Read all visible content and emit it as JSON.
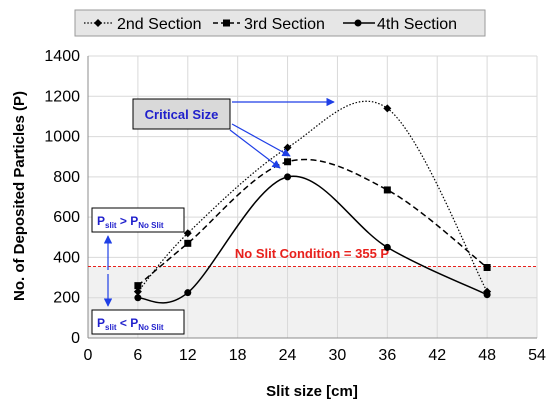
{
  "chart_data": {
    "type": "line",
    "xlabel": "Slit size [cm]",
    "ylabel": "No. of Deposited Particles (P)",
    "xlim": [
      0,
      54
    ],
    "ylim": [
      0,
      1400
    ],
    "xticks": [
      0,
      6,
      12,
      18,
      24,
      30,
      36,
      42,
      48,
      54
    ],
    "yticks": [
      0,
      200,
      400,
      600,
      800,
      1000,
      1200,
      1400
    ],
    "grid": "major x and y",
    "legend_position": "top",
    "series": [
      {
        "name": "2nd Section",
        "x": [
          6,
          12,
          24,
          36,
          48
        ],
        "y": [
          230,
          520,
          945,
          1140,
          230
        ],
        "marker": "diamond",
        "line_style": "dotted"
      },
      {
        "name": "3rd Section",
        "x": [
          6,
          12,
          24,
          36,
          48
        ],
        "y": [
          260,
          470,
          875,
          735,
          350
        ],
        "marker": "square",
        "line_style": "dashed"
      },
      {
        "name": "4th Section",
        "x": [
          6,
          12,
          24,
          36,
          48
        ],
        "y": [
          200,
          225,
          800,
          450,
          215
        ],
        "marker": "circle",
        "line_style": "solid"
      }
    ],
    "reference_line": {
      "y": 355,
      "label": "No Slit Condition = 355 P",
      "color": "#e8201c"
    },
    "annotations": {
      "critical_size": "Critical Size",
      "above": {
        "main": "P",
        "sub1": "slit",
        "mid": " > P",
        "sub2": "No Slit"
      },
      "below": {
        "main": "P",
        "sub1": "slit",
        "mid": " < P",
        "sub2": "No Slit"
      }
    }
  },
  "colors": {
    "series": "#000000",
    "reference_line": "#e8201c",
    "annotation_text": "#1f1fcc",
    "arrow": "#1f3fe6",
    "shaded_region": "#f1f1f1",
    "grid": "#d9d9d9",
    "legend_bg": "#e6e6e6",
    "critical_box_bg": "#d9d9d9"
  }
}
